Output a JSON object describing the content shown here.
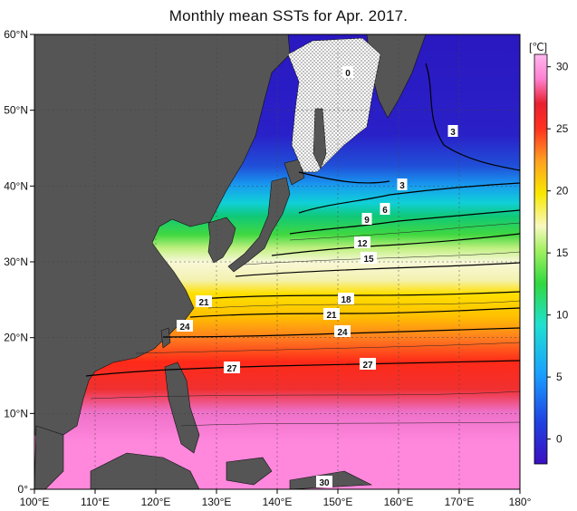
{
  "title": "Monthly mean SSTs for Apr. 2017.",
  "x_axis": {
    "ticks": [
      "100°E",
      "110°E",
      "120°E",
      "130°E",
      "140°E",
      "150°E",
      "160°E",
      "170°E",
      "180°"
    ]
  },
  "y_axis": {
    "ticks": [
      "60°N",
      "50°N",
      "40°N",
      "30°N",
      "20°N",
      "10°N",
      "0°"
    ]
  },
  "colorbar": {
    "unit": "[℃]",
    "ticks": [
      "30",
      "25",
      "20",
      "15",
      "10",
      "5",
      "0"
    ],
    "tick_values": [
      30,
      25,
      20,
      15,
      10,
      5,
      0
    ],
    "range": [
      -2,
      31
    ]
  },
  "contour_labels": [
    "0",
    "3",
    "3",
    "6",
    "9",
    "12",
    "15",
    "18",
    "21",
    "21",
    "24",
    "24",
    "27",
    "27",
    "30"
  ],
  "colors": {
    "land": "#555555",
    "sea_ice": "#ffffff",
    "band_cold": "#2f18c8",
    "band_warm": "#ff88dd"
  }
}
